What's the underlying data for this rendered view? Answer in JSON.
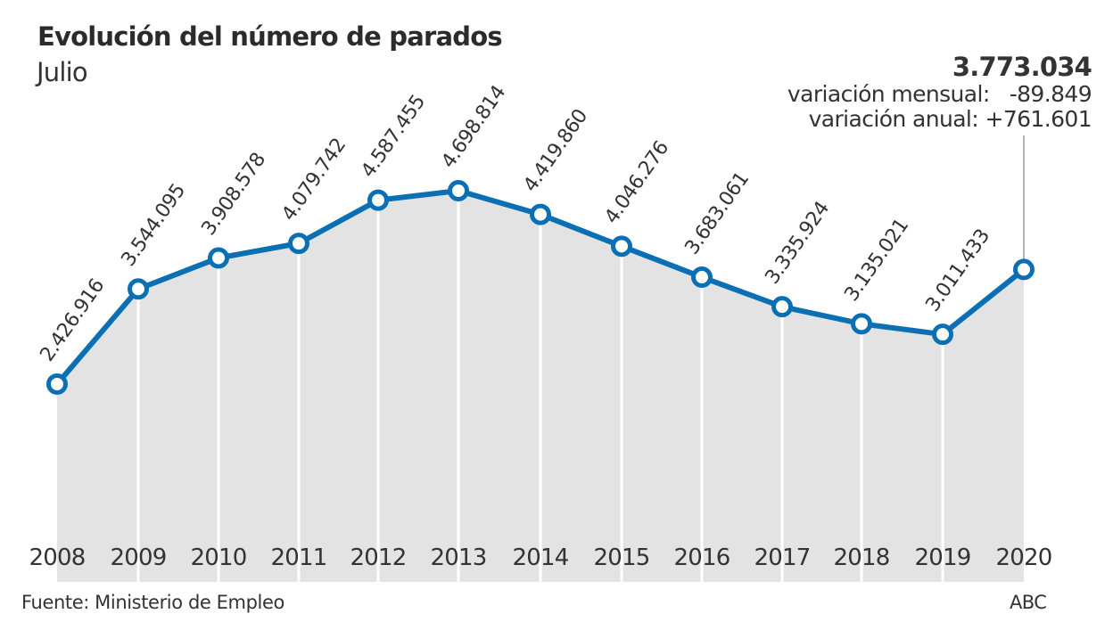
{
  "chart_data": {
    "type": "area",
    "title": "Evolución del número de parados",
    "subtitle": "Julio",
    "xlabel": "",
    "ylabel": "",
    "ylim": [
      100000,
      6000000
    ],
    "grid": "vertical",
    "categories": [
      "2008",
      "2009",
      "2010",
      "2011",
      "2012",
      "2013",
      "2014",
      "2015",
      "2016",
      "2017",
      "2018",
      "2019",
      "2020"
    ],
    "series": [
      {
        "name": "Parados",
        "values": [
          2426916,
          3544095,
          3908578,
          4079742,
          4587455,
          4698814,
          4419860,
          4046276,
          3683061,
          3335924,
          3135021,
          3011433,
          3773034
        ],
        "labels": [
          "2.426.916",
          "3.544.095",
          "3.908.578",
          "4.079.742",
          "4.587.455",
          "4.698.814",
          "4.419.860",
          "4.046.276",
          "3.683.061",
          "3.335.924",
          "3.135.021",
          "3.011.433",
          ""
        ]
      }
    ],
    "colors": {
      "line": "#0b6fb4",
      "area": "#e3e3e3",
      "grid": "#ffffff",
      "marker_fill": "#ffffff",
      "connector": "#9a9a9a"
    },
    "annotation": {
      "value": "3.773.034",
      "monthly_label": "variación mensual:",
      "monthly_value": "-89.849",
      "annual_label": "variación anual:",
      "annual_value": "+761.601"
    }
  },
  "footer": {
    "source": "Fuente: Ministerio de Empleo",
    "brand": "ABC"
  }
}
